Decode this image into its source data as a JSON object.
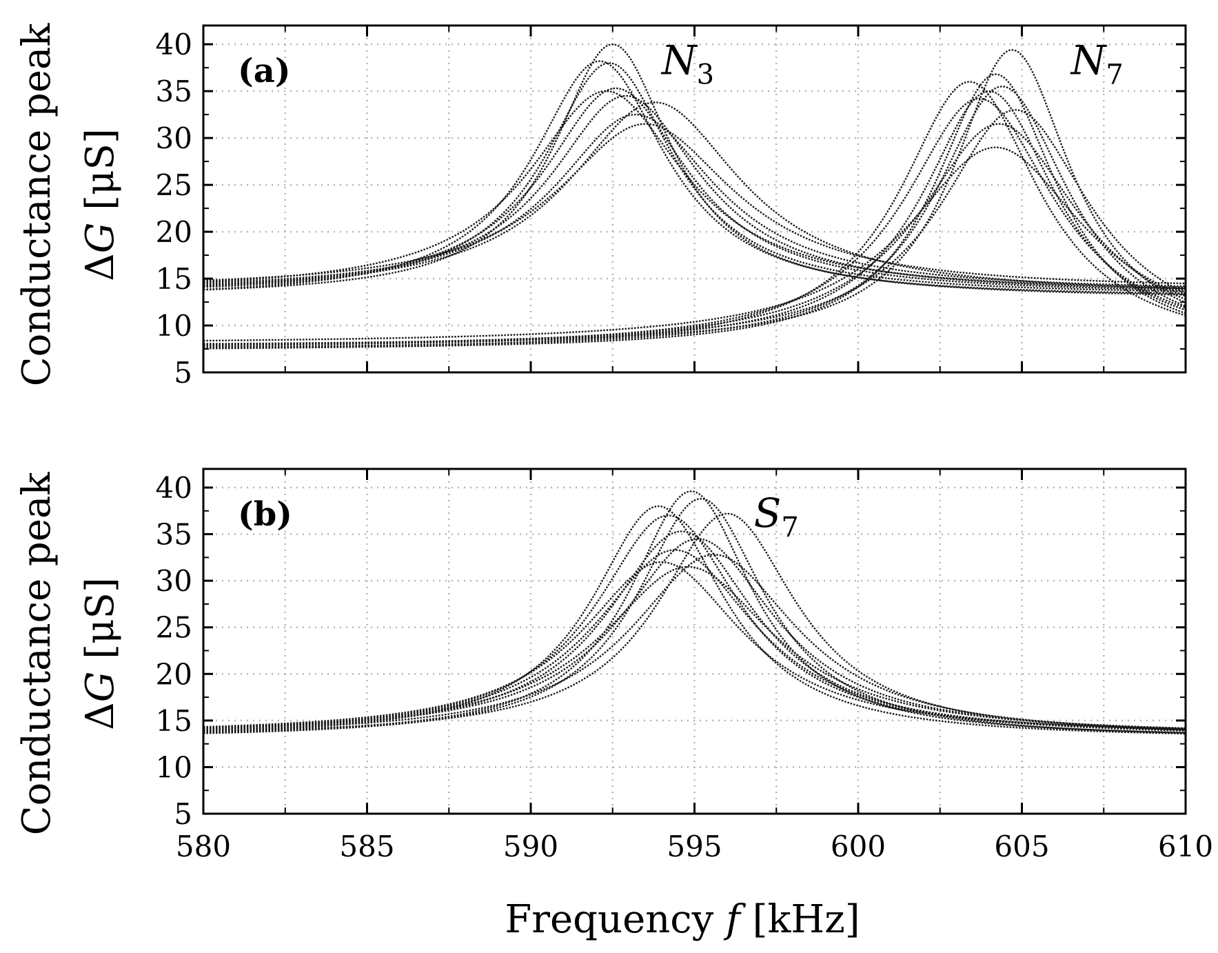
{
  "figure": {
    "xlabel": {
      "main": "Frequency ",
      "var": "f",
      "unit": " [kHz]"
    },
    "ylabel": {
      "line1": "Conductance peak",
      "delta": "Δ",
      "var": "G",
      "unit": " [μS]"
    },
    "colors": {
      "curve": "#1a1a1a",
      "grid": "#b5b5b5",
      "axis": "#000000",
      "background": "#ffffff"
    }
  },
  "chart_data": [
    {
      "type": "line",
      "panel_label": "(a)",
      "annotations": [
        {
          "base": "N",
          "sub": "3",
          "at": [
            594.8,
            36.8
          ]
        },
        {
          "base": "N",
          "sub": "7",
          "at": [
            607.3,
            36.8
          ]
        }
      ],
      "xlim": [
        580,
        610
      ],
      "ylim": [
        5,
        42
      ],
      "xticks": [
        580,
        585,
        590,
        595,
        600,
        605,
        610
      ],
      "yticks": [
        5,
        10,
        15,
        20,
        25,
        30,
        35,
        40
      ],
      "grid": true,
      "x_tick_labels_shown": false,
      "line_style": "dotted",
      "series_model": "lorentzian",
      "series": [
        {
          "group": "N3",
          "f0": 592.1,
          "peak": 38.2,
          "base": 12.8,
          "hwhm": 2.5
        },
        {
          "group": "N3",
          "f0": 592.5,
          "peak": 40.0,
          "base": 13.0,
          "hwhm": 2.2
        },
        {
          "group": "N3",
          "f0": 592.4,
          "peak": 38.0,
          "base": 13.2,
          "hwhm": 2.4
        },
        {
          "group": "N3",
          "f0": 592.6,
          "peak": 35.3,
          "base": 13.3,
          "hwhm": 2.7
        },
        {
          "group": "N3",
          "f0": 592.3,
          "peak": 35.0,
          "base": 13.5,
          "hwhm": 2.9
        },
        {
          "group": "N3",
          "f0": 592.9,
          "peak": 34.5,
          "base": 13.4,
          "hwhm": 2.8
        },
        {
          "group": "N3",
          "f0": 593.2,
          "peak": 32.5,
          "base": 13.6,
          "hwhm": 3.0
        },
        {
          "group": "N3",
          "f0": 593.8,
          "peak": 33.8,
          "base": 13.2,
          "hwhm": 3.2
        },
        {
          "group": "N3",
          "f0": 593.5,
          "peak": 31.5,
          "base": 13.8,
          "hwhm": 3.3
        },
        {
          "group": "N7",
          "f0": 603.4,
          "peak": 36.0,
          "base": 7.2,
          "hwhm": 2.6
        },
        {
          "group": "N7",
          "f0": 603.7,
          "peak": 34.2,
          "base": 7.5,
          "hwhm": 2.8
        },
        {
          "group": "N7",
          "f0": 604.0,
          "peak": 35.0,
          "base": 7.6,
          "hwhm": 2.5
        },
        {
          "group": "N7",
          "f0": 604.2,
          "peak": 36.8,
          "base": 7.3,
          "hwhm": 2.3
        },
        {
          "group": "N7",
          "f0": 604.7,
          "peak": 39.4,
          "base": 7.8,
          "hwhm": 2.2
        },
        {
          "group": "N7",
          "f0": 604.4,
          "peak": 35.5,
          "base": 7.4,
          "hwhm": 2.5
        },
        {
          "group": "N7",
          "f0": 604.3,
          "peak": 31.5,
          "base": 7.6,
          "hwhm": 3.0
        },
        {
          "group": "N7",
          "f0": 604.8,
          "peak": 33.0,
          "base": 7.7,
          "hwhm": 2.8
        },
        {
          "group": "N7",
          "f0": 604.2,
          "peak": 29.0,
          "base": 8.0,
          "hwhm": 3.3
        }
      ]
    },
    {
      "type": "line",
      "panel_label": "(b)",
      "annotations": [
        {
          "base": "S",
          "sub": "7",
          "at": [
            597.5,
            35.8
          ]
        }
      ],
      "xlim": [
        580,
        610
      ],
      "ylim": [
        5,
        42
      ],
      "xticks": [
        580,
        585,
        590,
        595,
        600,
        605,
        610
      ],
      "yticks": [
        5,
        10,
        15,
        20,
        25,
        30,
        35,
        40
      ],
      "grid": true,
      "x_tick_labels_shown": true,
      "line_style": "dotted",
      "series_model": "lorentzian",
      "series": [
        {
          "group": "S7",
          "f0": 593.9,
          "peak": 38.0,
          "base": 13.0,
          "hwhm": 2.5
        },
        {
          "group": "S7",
          "f0": 594.9,
          "peak": 39.6,
          "base": 13.1,
          "hwhm": 2.3
        },
        {
          "group": "S7",
          "f0": 595.2,
          "peak": 38.8,
          "base": 13.0,
          "hwhm": 2.4
        },
        {
          "group": "S7",
          "f0": 596.0,
          "peak": 37.2,
          "base": 13.2,
          "hwhm": 2.6
        },
        {
          "group": "S7",
          "f0": 594.2,
          "peak": 37.0,
          "base": 13.3,
          "hwhm": 2.7
        },
        {
          "group": "S7",
          "f0": 594.6,
          "peak": 35.3,
          "base": 13.2,
          "hwhm": 2.8
        },
        {
          "group": "S7",
          "f0": 595.1,
          "peak": 34.5,
          "base": 13.4,
          "hwhm": 2.9
        },
        {
          "group": "S7",
          "f0": 594.0,
          "peak": 32.0,
          "base": 13.5,
          "hwhm": 3.0
        },
        {
          "group": "S7",
          "f0": 594.4,
          "peak": 33.3,
          "base": 13.3,
          "hwhm": 3.0
        },
        {
          "group": "S7",
          "f0": 594.8,
          "peak": 31.5,
          "base": 13.4,
          "hwhm": 3.2
        },
        {
          "group": "S7",
          "f0": 595.6,
          "peak": 32.8,
          "base": 13.2,
          "hwhm": 3.1
        }
      ]
    }
  ]
}
